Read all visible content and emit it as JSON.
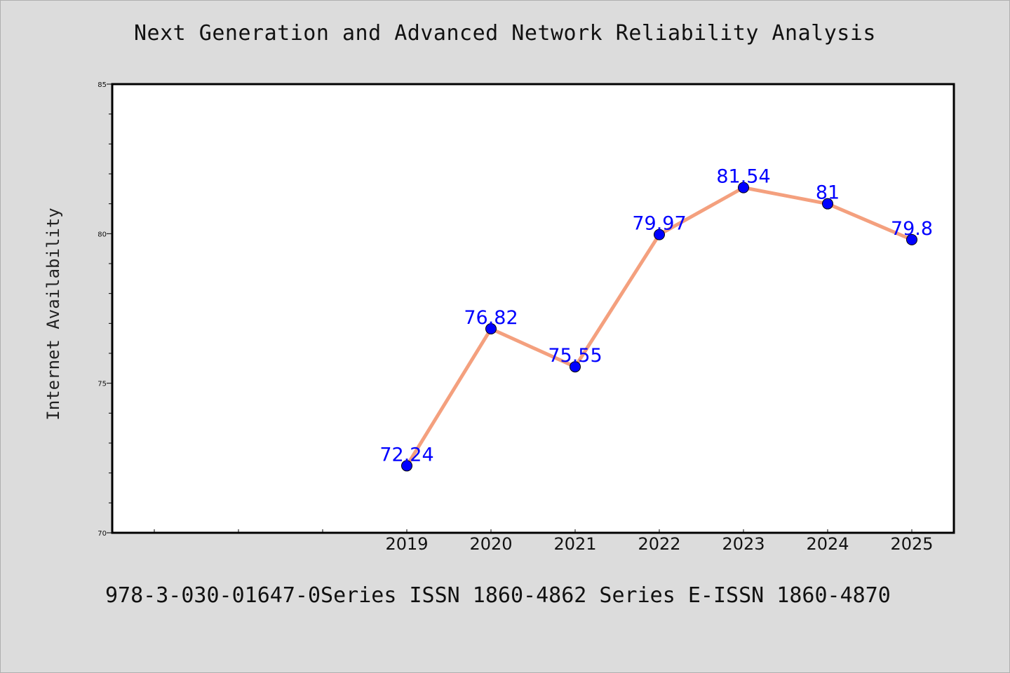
{
  "chart_data": {
    "type": "line",
    "title": "Next Generation and Advanced Network Reliability Analysis",
    "ylabel": "Internet Availability",
    "xlabel": "",
    "categories": [
      "2019",
      "2020",
      "2021",
      "2022",
      "2023",
      "2024",
      "2025"
    ],
    "x_slots": 10,
    "first_category_slot": 3,
    "series": [
      {
        "values": [
          72.24,
          76.82,
          75.55,
          79.97,
          81.54,
          81,
          79.8
        ],
        "labels": [
          "72.24",
          "76.82",
          "75.55",
          "79.97",
          "81.54",
          "81",
          "79.8"
        ]
      }
    ],
    "ylim": [
      70,
      85
    ],
    "yticks": [
      "70",
      "75",
      "80",
      "85"
    ],
    "y_minor_step": 1,
    "grid": false,
    "colors": {
      "line": "#f4a07e",
      "marker": "#0000ff",
      "label": "#0000ff",
      "background": "#dcdcdc",
      "plot_bg": "#ffffff"
    }
  },
  "footer": {
    "text": "978-3-030-01647-0Series ISSN 1860-4862 Series E-ISSN 1860-4870"
  }
}
